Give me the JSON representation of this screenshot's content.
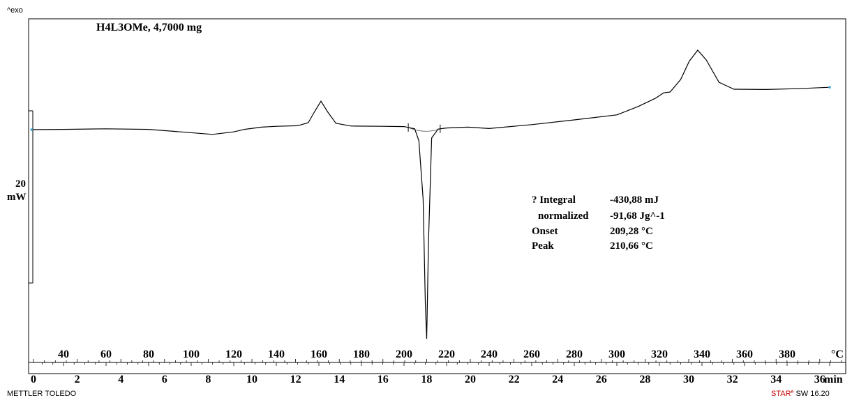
{
  "chart_data": {
    "type": "line",
    "title": "H4L3OMe, 4,7000 mg",
    "exo_label": "^exo",
    "scale_bar": {
      "value": "20",
      "unit": "mW"
    },
    "x_temperature": {
      "unit": "°C",
      "ticks": [
        40,
        60,
        80,
        100,
        120,
        140,
        160,
        180,
        200,
        220,
        240,
        260,
        280,
        300,
        320,
        340,
        360,
        380
      ],
      "range": [
        25,
        400
      ]
    },
    "x_time": {
      "unit": "min",
      "ticks": [
        0,
        2,
        4,
        6,
        8,
        10,
        12,
        14,
        16,
        18,
        20,
        22,
        24,
        26,
        28,
        30,
        32,
        34,
        36
      ],
      "range": [
        0,
        37.5
      ]
    },
    "series": [
      {
        "x": [
          25,
          40,
          60,
          80,
          95,
          110,
          120,
          125,
          130,
          133,
          140,
          150,
          155,
          158,
          161,
          164,
          168,
          175,
          190,
          200,
          205,
          207,
          209,
          210,
          210.66,
          211.5,
          213,
          216,
          220,
          230,
          240,
          260,
          280,
          300,
          310,
          318,
          322,
          325,
          330,
          334,
          338,
          342,
          348,
          355,
          370,
          385,
          400
        ],
        "y": [
          0,
          0.1,
          0.3,
          0.1,
          -0.8,
          -1.7,
          -0.8,
          0.1,
          0.6,
          0.9,
          1.2,
          1.4,
          2.5,
          6.5,
          10.2,
          6.5,
          2.3,
          1.3,
          1.2,
          1.1,
          0.3,
          -4,
          -25,
          -62,
          -75,
          -40,
          -3,
          0.2,
          0.6,
          0.9,
          0.4,
          1.8,
          3.5,
          5.3,
          8.3,
          11.2,
          13.2,
          13.5,
          18,
          24.5,
          28.5,
          25,
          17,
          14.5,
          14.4,
          14.7,
          15.2
        ]
      }
    ],
    "annotation": {
      "rows": [
        {
          "label": "? Integral",
          "value": "-430,88 mJ"
        },
        {
          "label": "normalized",
          "value": "-91,68 Jg^-1"
        },
        {
          "label": "Onset",
          "value": "209,28 °C"
        },
        {
          "label": "Peak",
          "value": "210,66 °C"
        }
      ]
    },
    "integration_limits": [
      202,
      217
    ]
  },
  "footer": {
    "left": "METTLER TOLEDO",
    "right_brand": "STAR",
    "right_superscript": "e",
    "right_version": "SW 16.20"
  }
}
